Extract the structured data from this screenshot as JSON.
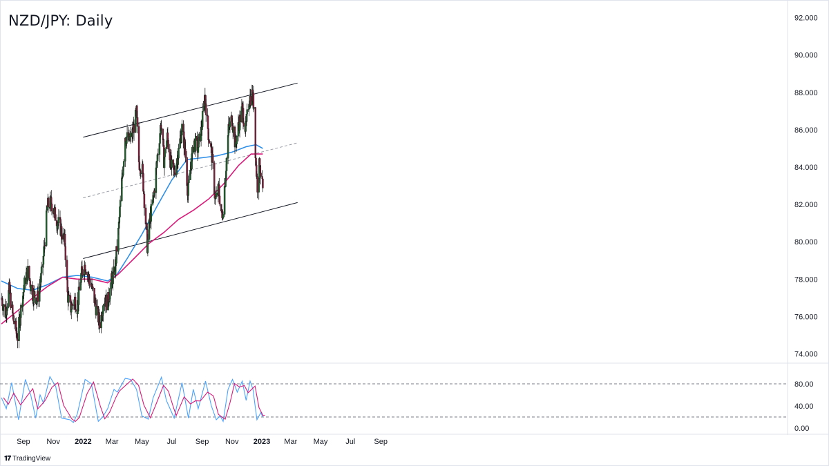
{
  "chart_data": {
    "title": "NZD/JPY: Daily",
    "type": "candlestick",
    "price_axis": {
      "ticks": [
        "92.000",
        "90.000",
        "88.000",
        "86.000",
        "84.000",
        "82.000",
        "80.000",
        "78.000",
        "76.000",
        "74.000"
      ],
      "range": [
        73.5,
        92.8
      ]
    },
    "oscillator_axis": {
      "ticks": [
        "80.00",
        "40.00",
        "0.00"
      ],
      "range": [
        -10,
        115
      ],
      "bands": [
        80,
        20
      ]
    },
    "time_axis": {
      "labels": [
        {
          "text": "Sep",
          "date": "2021-09-01",
          "bold": false
        },
        {
          "text": "Nov",
          "date": "2021-11-01",
          "bold": false
        },
        {
          "text": "2022",
          "date": "2022-01-01",
          "bold": true
        },
        {
          "text": "Mar",
          "date": "2022-03-01",
          "bold": false
        },
        {
          "text": "May",
          "date": "2022-05-01",
          "bold": false
        },
        {
          "text": "Jul",
          "date": "2022-07-01",
          "bold": false
        },
        {
          "text": "Sep",
          "date": "2022-09-01",
          "bold": false
        },
        {
          "text": "Nov",
          "date": "2022-11-01",
          "bold": false
        },
        {
          "text": "2023",
          "date": "2023-01-01",
          "bold": true
        },
        {
          "text": "Mar",
          "date": "2023-03-01",
          "bold": false
        },
        {
          "text": "May",
          "date": "2023-05-01",
          "bold": false
        },
        {
          "text": "Jul",
          "date": "2023-07-01",
          "bold": false
        },
        {
          "text": "Sep",
          "date": "2023-09-01",
          "bold": false
        }
      ]
    },
    "channel": {
      "upper": [
        {
          "date": "2022-01-01",
          "value": 85.6
        },
        {
          "date": "2023-03-15",
          "value": 88.5
        }
      ],
      "lower": [
        {
          "date": "2022-01-01",
          "value": 79.1
        },
        {
          "date": "2023-03-15",
          "value": 82.1
        }
      ],
      "mid": [
        {
          "date": "2022-01-01",
          "value": 82.35
        },
        {
          "date": "2023-03-15",
          "value": 85.3
        }
      ]
    },
    "price_path": [
      {
        "date": "2021-07-18",
        "value": 77.0
      },
      {
        "date": "2021-07-26",
        "value": 76.2
      },
      {
        "date": "2021-08-03",
        "value": 77.4
      },
      {
        "date": "2021-08-11",
        "value": 75.9
      },
      {
        "date": "2021-08-20",
        "value": 74.9
      },
      {
        "date": "2021-08-27",
        "value": 76.4
      },
      {
        "date": "2021-09-04",
        "value": 77.9
      },
      {
        "date": "2021-09-10",
        "value": 78.4
      },
      {
        "date": "2021-09-20",
        "value": 77.2
      },
      {
        "date": "2021-09-30",
        "value": 77.0
      },
      {
        "date": "2021-10-10",
        "value": 78.5
      },
      {
        "date": "2021-10-20",
        "value": 81.9
      },
      {
        "date": "2021-10-28",
        "value": 82.1
      },
      {
        "date": "2021-11-06",
        "value": 81.3
      },
      {
        "date": "2021-11-15",
        "value": 80.8
      },
      {
        "date": "2021-11-25",
        "value": 79.9
      },
      {
        "date": "2021-11-30",
        "value": 77.2
      },
      {
        "date": "2021-12-06",
        "value": 76.4
      },
      {
        "date": "2021-12-15",
        "value": 76.9
      },
      {
        "date": "2021-12-20",
        "value": 76.5
      },
      {
        "date": "2021-12-28",
        "value": 78.2
      },
      {
        "date": "2022-01-05",
        "value": 78.8
      },
      {
        "date": "2022-01-12",
        "value": 78.1
      },
      {
        "date": "2022-01-22",
        "value": 77.2
      },
      {
        "date": "2022-01-30",
        "value": 76.1
      },
      {
        "date": "2022-02-05",
        "value": 75.6
      },
      {
        "date": "2022-02-12",
        "value": 77.0
      },
      {
        "date": "2022-02-20",
        "value": 76.7
      },
      {
        "date": "2022-02-28",
        "value": 77.9
      },
      {
        "date": "2022-03-07",
        "value": 78.5
      },
      {
        "date": "2022-03-14",
        "value": 80.5
      },
      {
        "date": "2022-03-20",
        "value": 82.8
      },
      {
        "date": "2022-03-28",
        "value": 85.7
      },
      {
        "date": "2022-04-05",
        "value": 85.4
      },
      {
        "date": "2022-04-12",
        "value": 85.8
      },
      {
        "date": "2022-04-20",
        "value": 86.9
      },
      {
        "date": "2022-04-25",
        "value": 84.3
      },
      {
        "date": "2022-05-02",
        "value": 83.8
      },
      {
        "date": "2022-05-08",
        "value": 81.5
      },
      {
        "date": "2022-05-12",
        "value": 79.8
      },
      {
        "date": "2022-05-18",
        "value": 81.3
      },
      {
        "date": "2022-05-25",
        "value": 82.4
      },
      {
        "date": "2022-06-02",
        "value": 84.6
      },
      {
        "date": "2022-06-09",
        "value": 86.4
      },
      {
        "date": "2022-06-15",
        "value": 84.4
      },
      {
        "date": "2022-06-22",
        "value": 85.6
      },
      {
        "date": "2022-06-30",
        "value": 84.0
      },
      {
        "date": "2022-07-06",
        "value": 83.7
      },
      {
        "date": "2022-07-14",
        "value": 84.7
      },
      {
        "date": "2022-07-22",
        "value": 86.1
      },
      {
        "date": "2022-07-28",
        "value": 85.0
      },
      {
        "date": "2022-08-03",
        "value": 82.5
      },
      {
        "date": "2022-08-09",
        "value": 84.1
      },
      {
        "date": "2022-08-16",
        "value": 85.4
      },
      {
        "date": "2022-08-23",
        "value": 85.0
      },
      {
        "date": "2022-08-30",
        "value": 85.9
      },
      {
        "date": "2022-09-07",
        "value": 87.8
      },
      {
        "date": "2022-09-14",
        "value": 85.8
      },
      {
        "date": "2022-09-21",
        "value": 84.6
      },
      {
        "date": "2022-09-28",
        "value": 82.2
      },
      {
        "date": "2022-10-05",
        "value": 82.8
      },
      {
        "date": "2022-10-12",
        "value": 81.2
      },
      {
        "date": "2022-10-18",
        "value": 83.3
      },
      {
        "date": "2022-10-25",
        "value": 86.0
      },
      {
        "date": "2022-11-01",
        "value": 86.6
      },
      {
        "date": "2022-11-08",
        "value": 85.2
      },
      {
        "date": "2022-11-15",
        "value": 86.3
      },
      {
        "date": "2022-11-22",
        "value": 87.1
      },
      {
        "date": "2022-11-29",
        "value": 86.0
      },
      {
        "date": "2022-12-06",
        "value": 87.6
      },
      {
        "date": "2022-12-12",
        "value": 87.9
      },
      {
        "date": "2022-12-16",
        "value": 87.3
      },
      {
        "date": "2022-12-20",
        "value": 84.1
      },
      {
        "date": "2022-12-23",
        "value": 83.0
      },
      {
        "date": "2022-12-28",
        "value": 84.3
      },
      {
        "date": "2022-12-31",
        "value": 83.4
      },
      {
        "date": "2023-01-03",
        "value": 82.7
      }
    ],
    "ma_blue": {
      "color": "#2f8fe8",
      "points": [
        {
          "date": "2021-07-18",
          "value": 77.9
        },
        {
          "date": "2021-08-20",
          "value": 77.5
        },
        {
          "date": "2021-09-20",
          "value": 77.4
        },
        {
          "date": "2021-10-20",
          "value": 77.7
        },
        {
          "date": "2021-11-20",
          "value": 78.1
        },
        {
          "date": "2021-12-20",
          "value": 78.2
        },
        {
          "date": "2022-01-20",
          "value": 78.1
        },
        {
          "date": "2022-02-20",
          "value": 77.9
        },
        {
          "date": "2022-03-10",
          "value": 78.2
        },
        {
          "date": "2022-04-01",
          "value": 79.1
        },
        {
          "date": "2022-05-01",
          "value": 80.4
        },
        {
          "date": "2022-06-01",
          "value": 81.9
        },
        {
          "date": "2022-07-01",
          "value": 83.3
        },
        {
          "date": "2022-08-01",
          "value": 84.4
        },
        {
          "date": "2022-09-01",
          "value": 84.5
        },
        {
          "date": "2022-10-01",
          "value": 84.6
        },
        {
          "date": "2022-11-01",
          "value": 84.8
        },
        {
          "date": "2022-12-01",
          "value": 85.1
        },
        {
          "date": "2022-12-20",
          "value": 85.2
        },
        {
          "date": "2023-01-03",
          "value": 85.0
        }
      ]
    },
    "ma_magenta": {
      "color": "#d81b7a",
      "points": [
        {
          "date": "2021-07-18",
          "value": 75.6
        },
        {
          "date": "2021-08-20",
          "value": 76.3
        },
        {
          "date": "2021-09-20",
          "value": 77.0
        },
        {
          "date": "2021-10-20",
          "value": 77.6
        },
        {
          "date": "2021-11-20",
          "value": 78.1
        },
        {
          "date": "2021-12-20",
          "value": 78.0
        },
        {
          "date": "2022-01-20",
          "value": 78.0
        },
        {
          "date": "2022-02-20",
          "value": 77.8
        },
        {
          "date": "2022-03-15",
          "value": 78.3
        },
        {
          "date": "2022-04-15",
          "value": 79.1
        },
        {
          "date": "2022-05-15",
          "value": 79.9
        },
        {
          "date": "2022-06-15",
          "value": 80.5
        },
        {
          "date": "2022-07-15",
          "value": 81.2
        },
        {
          "date": "2022-08-15",
          "value": 81.7
        },
        {
          "date": "2022-09-15",
          "value": 82.3
        },
        {
          "date": "2022-10-15",
          "value": 83.1
        },
        {
          "date": "2022-11-15",
          "value": 84.1
        },
        {
          "date": "2022-12-10",
          "value": 84.7
        },
        {
          "date": "2023-01-03",
          "value": 84.7
        }
      ]
    },
    "stochastic": {
      "k_color": "#4aa3ff",
      "d_color": "#d81b7a",
      "points": [
        {
          "date": "2021-07-18",
          "value": 55
        },
        {
          "date": "2021-07-28",
          "value": 35
        },
        {
          "date": "2021-08-08",
          "value": 82
        },
        {
          "date": "2021-08-22",
          "value": 15
        },
        {
          "date": "2021-09-05",
          "value": 88
        },
        {
          "date": "2021-09-16",
          "value": 60
        },
        {
          "date": "2021-09-26",
          "value": 18
        },
        {
          "date": "2021-10-05",
          "value": 60
        },
        {
          "date": "2021-10-12",
          "value": 45
        },
        {
          "date": "2021-10-25",
          "value": 93
        },
        {
          "date": "2021-11-06",
          "value": 75
        },
        {
          "date": "2021-11-18",
          "value": 18
        },
        {
          "date": "2021-12-05",
          "value": 15
        },
        {
          "date": "2021-12-12",
          "value": 10
        },
        {
          "date": "2021-12-20",
          "value": 25
        },
        {
          "date": "2022-01-05",
          "value": 88
        },
        {
          "date": "2022-01-18",
          "value": 80
        },
        {
          "date": "2022-02-01",
          "value": 12
        },
        {
          "date": "2022-02-10",
          "value": 20
        },
        {
          "date": "2022-02-20",
          "value": 35
        },
        {
          "date": "2022-03-05",
          "value": 70
        },
        {
          "date": "2022-03-12",
          "value": 65
        },
        {
          "date": "2022-03-28",
          "value": 90
        },
        {
          "date": "2022-04-08",
          "value": 88
        },
        {
          "date": "2022-04-20",
          "value": 70
        },
        {
          "date": "2022-05-01",
          "value": 22
        },
        {
          "date": "2022-05-14",
          "value": 16
        },
        {
          "date": "2022-05-24",
          "value": 55
        },
        {
          "date": "2022-06-10",
          "value": 92
        },
        {
          "date": "2022-06-20",
          "value": 50
        },
        {
          "date": "2022-06-30",
          "value": 30
        },
        {
          "date": "2022-07-06",
          "value": 18
        },
        {
          "date": "2022-07-22",
          "value": 82
        },
        {
          "date": "2022-08-04",
          "value": 18
        },
        {
          "date": "2022-08-14",
          "value": 70
        },
        {
          "date": "2022-08-24",
          "value": 35
        },
        {
          "date": "2022-09-08",
          "value": 85
        },
        {
          "date": "2022-09-20",
          "value": 40
        },
        {
          "date": "2022-09-30",
          "value": 15
        },
        {
          "date": "2022-10-08",
          "value": 22
        },
        {
          "date": "2022-10-14",
          "value": 12
        },
        {
          "date": "2022-10-24",
          "value": 70
        },
        {
          "date": "2022-11-02",
          "value": 88
        },
        {
          "date": "2022-11-12",
          "value": 65
        },
        {
          "date": "2022-11-22",
          "value": 85
        },
        {
          "date": "2022-11-30",
          "value": 50
        },
        {
          "date": "2022-12-08",
          "value": 85
        },
        {
          "date": "2022-12-14",
          "value": 70
        },
        {
          "date": "2022-12-22",
          "value": 15
        },
        {
          "date": "2022-12-30",
          "value": 28
        },
        {
          "date": "2023-01-03",
          "value": 20
        }
      ]
    }
  },
  "branding": {
    "logo_icon": "tradingview-logo-icon",
    "text": "TradingView"
  }
}
